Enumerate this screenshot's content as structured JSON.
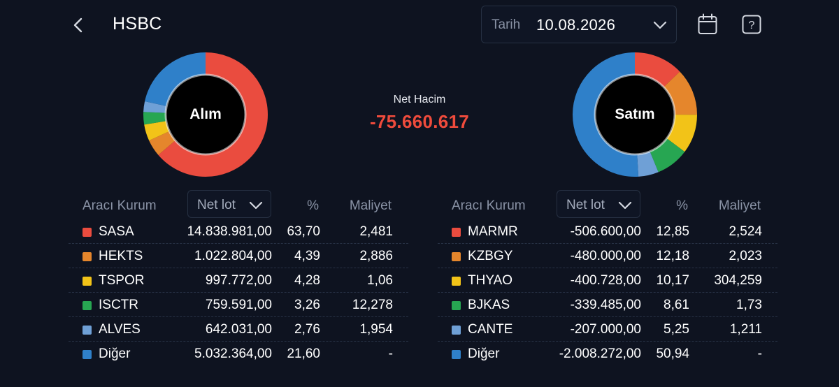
{
  "header": {
    "title": "HSBC",
    "date_label": "Tarih",
    "date_value": "10.08.2026"
  },
  "icons": {
    "back": "chevron-left-icon",
    "dropdown": "chevron-down-icon",
    "calendar": "calendar-icon",
    "help": "help-icon"
  },
  "colors": {
    "red": "#ea4c3f",
    "orange": "#e5862c",
    "yellow": "#f2c318",
    "green": "#27a652",
    "light_blue": "#6fa0d6",
    "blue": "#2f80c9",
    "negative": "#ef4b3c"
  },
  "summary": {
    "net_label": "Net Hacim",
    "net_value": "-75.660.617"
  },
  "buy": {
    "donut_label": "Alım",
    "header_broker": "Aracı Kurum",
    "sort_label": "Net lot",
    "header_pct": "%",
    "header_cost": "Maliyet",
    "rows": [
      {
        "name": "SASA",
        "lot": "14.838.981,00",
        "pct": "63,70",
        "cost": "2,481",
        "color": "#ea4c3f",
        "share": 63.7
      },
      {
        "name": "HEKTS",
        "lot": "1.022.804,00",
        "pct": "4,39",
        "cost": "2,886",
        "color": "#e5862c",
        "share": 4.39
      },
      {
        "name": "TSPOR",
        "lot": "997.772,00",
        "pct": "4,28",
        "cost": "1,06",
        "color": "#f2c318",
        "share": 4.28
      },
      {
        "name": "ISCTR",
        "lot": "759.591,00",
        "pct": "3,26",
        "cost": "12,278",
        "color": "#27a652",
        "share": 3.26
      },
      {
        "name": "ALVES",
        "lot": "642.031,00",
        "pct": "2,76",
        "cost": "1,954",
        "color": "#6fa0d6",
        "share": 2.76
      },
      {
        "name": "Diğer",
        "lot": "5.032.364,00",
        "pct": "21,60",
        "cost": "-",
        "color": "#2f80c9",
        "share": 21.6
      }
    ]
  },
  "sell": {
    "donut_label": "Satım",
    "header_broker": "Aracı Kurum",
    "sort_label": "Net lot",
    "header_pct": "%",
    "header_cost": "Maliyet",
    "rows": [
      {
        "name": "MARMR",
        "lot": "-506.600,00",
        "pct": "12,85",
        "cost": "2,524",
        "color": "#ea4c3f",
        "share": 12.85
      },
      {
        "name": "KZBGY",
        "lot": "-480.000,00",
        "pct": "12,18",
        "cost": "2,023",
        "color": "#e5862c",
        "share": 12.18
      },
      {
        "name": "THYAO",
        "lot": "-400.728,00",
        "pct": "10,17",
        "cost": "304,259",
        "color": "#f2c318",
        "share": 10.17
      },
      {
        "name": "BJKAS",
        "lot": "-339.485,00",
        "pct": "8,61",
        "cost": "1,73",
        "color": "#27a652",
        "share": 8.61
      },
      {
        "name": "CANTE",
        "lot": "-207.000,00",
        "pct": "5,25",
        "cost": "1,211",
        "color": "#6fa0d6",
        "share": 5.25
      },
      {
        "name": "Diğer",
        "lot": "-2.008.272,00",
        "pct": "50,94",
        "cost": "-",
        "color": "#2f80c9",
        "share": 50.94
      }
    ]
  }
}
